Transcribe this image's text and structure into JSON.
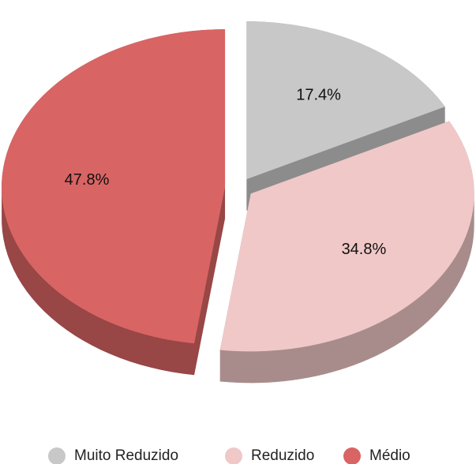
{
  "chart_data": {
    "type": "pie",
    "categories": [
      "Muito Reduzido",
      "Reduzido",
      "Médio"
    ],
    "values": [
      17.4,
      34.8,
      47.8
    ],
    "value_labels": [
      "17.4%",
      "34.8%",
      "47.8%"
    ],
    "colors": [
      "#c8c8c8",
      "#f0c8c8",
      "#d96464"
    ],
    "legend": "bottom"
  }
}
